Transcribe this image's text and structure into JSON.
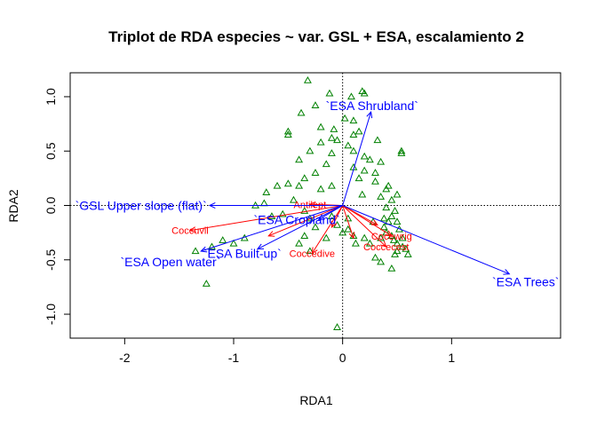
{
  "chart_data": {
    "type": "scatter",
    "title": "Triplot de RDA especies ~ var. GSL + ESA, escalamiento 2",
    "xlabel": "RDA1",
    "ylabel": "RDA2",
    "xlim": [
      -2.5,
      2.0
    ],
    "ylim": [
      -1.22,
      1.22
    ],
    "x_ticks": [
      -2,
      -1,
      0,
      1
    ],
    "y_ticks": [
      -1.0,
      -0.5,
      0.0,
      0.5,
      1.0
    ],
    "y_tick_labels": [
      "-1.0",
      "-0.5",
      "0.0",
      "0.5",
      "1.0"
    ],
    "reference_lines": {
      "x": 0,
      "y": 0,
      "style": "dotted"
    },
    "colors": {
      "sites": "#008000",
      "species": "#ff0000",
      "environment": "#0000ff"
    },
    "sites": [
      [
        -0.32,
        1.15
      ],
      [
        0.18,
        1.05
      ],
      [
        0.2,
        1.03
      ],
      [
        -0.12,
        1.03
      ],
      [
        0.08,
        1.0
      ],
      [
        -0.25,
        0.92
      ],
      [
        -0.38,
        0.85
      ],
      [
        0.02,
        0.8
      ],
      [
        0.1,
        0.78
      ],
      [
        -0.2,
        0.72
      ],
      [
        -0.08,
        0.7
      ],
      [
        0.15,
        0.68
      ],
      [
        -0.5,
        0.68
      ],
      [
        0.1,
        0.65
      ],
      [
        -0.1,
        0.62
      ],
      [
        -0.5,
        0.65
      ],
      [
        -0.05,
        0.6
      ],
      [
        0.32,
        0.6
      ],
      [
        -0.2,
        0.58
      ],
      [
        0.05,
        0.55
      ],
      [
        -0.3,
        0.5
      ],
      [
        0.1,
        0.5
      ],
      [
        0.2,
        0.45
      ],
      [
        0.54,
        0.48
      ],
      [
        0.54,
        0.5
      ],
      [
        -0.4,
        0.42
      ],
      [
        0.25,
        0.42
      ],
      [
        -0.1,
        0.48
      ],
      [
        0.35,
        0.4
      ],
      [
        -0.15,
        0.38
      ],
      [
        0.1,
        0.35
      ],
      [
        0.2,
        0.32
      ],
      [
        -0.25,
        0.3
      ],
      [
        -0.35,
        0.25
      ],
      [
        0.3,
        0.3
      ],
      [
        0.15,
        0.25
      ],
      [
        -0.5,
        0.2
      ],
      [
        -0.4,
        0.18
      ],
      [
        0.3,
        0.22
      ],
      [
        0.42,
        0.18
      ],
      [
        0.4,
        0.15
      ],
      [
        -0.6,
        0.18
      ],
      [
        -0.7,
        0.12
      ],
      [
        -0.2,
        0.15
      ],
      [
        -0.1,
        0.18
      ],
      [
        0.5,
        0.1
      ],
      [
        0.45,
        0.05
      ],
      [
        -0.72,
        0.02
      ],
      [
        -0.8,
        0.0
      ],
      [
        -0.65,
        -0.1
      ],
      [
        -0.55,
        -0.08
      ],
      [
        -0.35,
        -0.05
      ],
      [
        -0.3,
        -0.12
      ],
      [
        0.35,
        0.08
      ],
      [
        0.4,
        -0.02
      ],
      [
        0.38,
        -0.12
      ],
      [
        0.45,
        -0.1
      ],
      [
        0.5,
        -0.15
      ],
      [
        0.52,
        -0.22
      ],
      [
        -0.1,
        -0.1
      ],
      [
        -0.05,
        -0.18
      ],
      [
        0.05,
        -0.22
      ],
      [
        0.1,
        -0.28
      ],
      [
        0.2,
        -0.3
      ],
      [
        0.25,
        -0.35
      ],
      [
        0.35,
        -0.3
      ],
      [
        0.4,
        -0.25
      ],
      [
        0.45,
        -0.28
      ],
      [
        0.47,
        -0.32
      ],
      [
        0.5,
        -0.35
      ],
      [
        0.55,
        -0.3
      ],
      [
        0.55,
        -0.38
      ],
      [
        0.58,
        -0.4
      ],
      [
        0.5,
        -0.42
      ],
      [
        0.48,
        -0.45
      ],
      [
        0.6,
        -0.45
      ],
      [
        -0.9,
        -0.3
      ],
      [
        -1.0,
        -0.35
      ],
      [
        -1.1,
        -0.32
      ],
      [
        -1.2,
        -0.38
      ],
      [
        -1.35,
        -0.42
      ],
      [
        -1.25,
        -0.72
      ],
      [
        -0.35,
        -0.28
      ],
      [
        -0.4,
        -0.35
      ],
      [
        -0.3,
        -0.42
      ],
      [
        -0.15,
        -0.3
      ],
      [
        0.0,
        -0.25
      ],
      [
        0.3,
        -0.48
      ],
      [
        0.35,
        -0.52
      ],
      [
        0.45,
        -0.58
      ],
      [
        -0.05,
        -1.12
      ],
      [
        0.12,
        -0.35
      ],
      [
        -0.25,
        -0.2
      ],
      [
        0.05,
        -0.12
      ],
      [
        0.28,
        -0.15
      ],
      [
        0.38,
        -0.2
      ],
      [
        0.42,
        -0.15
      ],
      [
        0.48,
        -0.05
      ],
      [
        -0.45,
        0.05
      ],
      [
        0.18,
        0.1
      ]
    ],
    "species_vectors": [
      {
        "label": "Antilept",
        "x": -0.3,
        "y": 0.01
      },
      {
        "label": "Coccuvil",
        "x": -1.4,
        "y": -0.23
      },
      {
        "label": "Coccedive",
        "x": -0.28,
        "y": -0.44
      },
      {
        "label": "Coccecest",
        "x": 0.4,
        "y": -0.38
      },
      {
        "label": "Cocewrig",
        "x": 0.45,
        "y": -0.28
      },
      {
        "label": "",
        "x": 0.32,
        "y": -0.18
      },
      {
        "label": "",
        "x": 0.1,
        "y": -0.3
      },
      {
        "label": "",
        "x": -0.68,
        "y": -0.28
      },
      {
        "label": "",
        "x": -0.1,
        "y": -0.2
      }
    ],
    "env_vectors": [
      {
        "label": "`GSL Upper slope (flat)`",
        "x": -1.22,
        "y": 0.0,
        "label_x": -1.85,
        "label_y": 0.0
      },
      {
        "label": "`ESA Shrubland`",
        "x": 0.26,
        "y": 0.86,
        "label_x": 0.27,
        "label_y": 0.92
      },
      {
        "label": "`ESA Cropland`",
        "x": -0.22,
        "y": -0.13,
        "label_x": -0.42,
        "label_y": -0.13
      },
      {
        "label": "`ESA Built-up`",
        "x": -0.78,
        "y": -0.4,
        "label_x": -0.92,
        "label_y": -0.44
      },
      {
        "label": "`ESA Open water`",
        "x": -1.3,
        "y": -0.42,
        "label_x": -1.58,
        "label_y": -0.52
      },
      {
        "label": "`ESA Trees`",
        "x": 1.53,
        "y": -0.63,
        "label_x": 1.68,
        "label_y": -0.7
      }
    ]
  }
}
